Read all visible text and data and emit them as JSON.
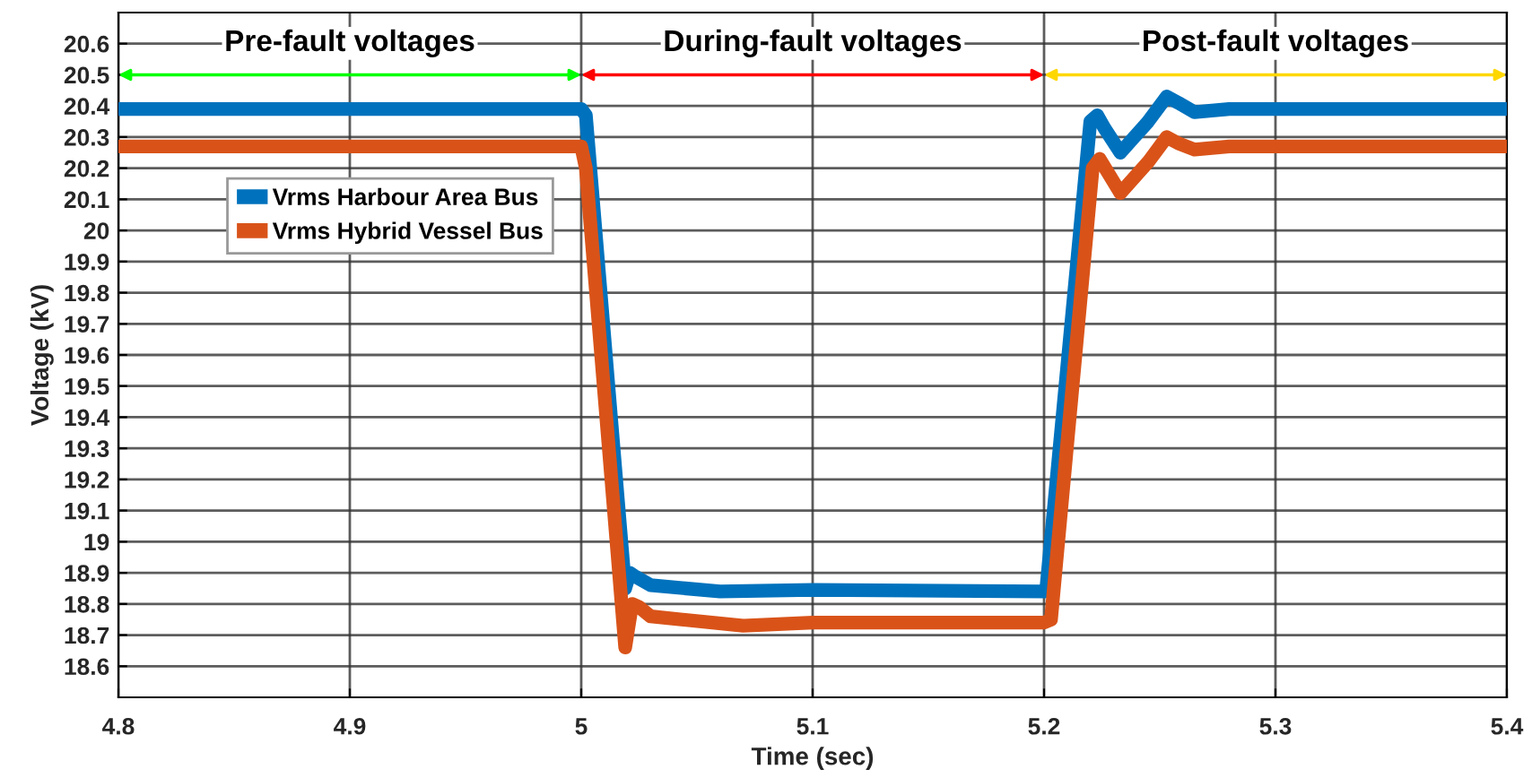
{
  "chart_data": {
    "type": "line",
    "xlabel": "Time (sec)",
    "ylabel": "Voltage (kV)",
    "xlim": [
      4.8,
      5.4
    ],
    "xticks": [
      4.8,
      4.9,
      5,
      5.1,
      5.2,
      5.3,
      5.4
    ],
    "ylim": [
      18.5,
      20.7
    ],
    "yticks": [
      18.6,
      18.7,
      18.8,
      18.9,
      19,
      19.1,
      19.2,
      19.3,
      19.4,
      19.5,
      19.6,
      19.7,
      19.8,
      19.9,
      20,
      20.1,
      20.2,
      20.3,
      20.4,
      20.5,
      20.6
    ],
    "grid": true,
    "legend": "top left",
    "line_style": "solid",
    "marker": "none",
    "annotations": [
      "Pre-fault voltages",
      "During-fault voltages",
      "Post-fault voltages"
    ],
    "series": [
      {
        "name": "Vrms Harbour Area Bus",
        "color": "#0072bd",
        "x": [
          4.8,
          5.0,
          5.002,
          5.019,
          5.021,
          5.023,
          5.03,
          5.06,
          5.1,
          5.2,
          5.201,
          5.22,
          5.223,
          5.226,
          5.233,
          5.245,
          5.253,
          5.258,
          5.265,
          5.28,
          5.4
        ],
        "values": [
          20.39,
          20.39,
          20.37,
          18.85,
          18.9,
          18.89,
          18.86,
          18.84,
          18.845,
          18.84,
          18.85,
          20.35,
          20.37,
          20.33,
          20.25,
          20.35,
          20.43,
          20.41,
          20.38,
          20.39,
          20.39
        ]
      },
      {
        "name": "Vrms Hybrid Vessel Bus",
        "color": "#d95319",
        "x": [
          4.8,
          5.0,
          5.002,
          5.019,
          5.022,
          5.025,
          5.03,
          5.07,
          5.1,
          5.2,
          5.203,
          5.221,
          5.224,
          5.233,
          5.245,
          5.253,
          5.258,
          5.265,
          5.28,
          5.4
        ],
        "values": [
          20.27,
          20.27,
          20.2,
          18.66,
          18.8,
          18.79,
          18.76,
          18.73,
          18.74,
          18.74,
          18.75,
          20.2,
          20.23,
          20.12,
          20.22,
          20.3,
          20.28,
          20.26,
          20.27,
          20.27
        ]
      }
    ]
  }
}
